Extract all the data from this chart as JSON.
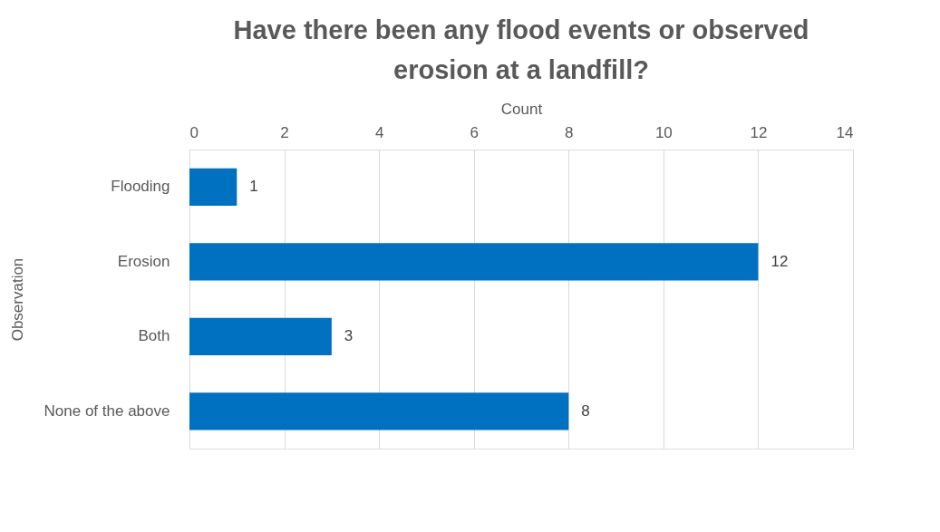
{
  "chart_data": {
    "type": "bar",
    "orientation": "horizontal",
    "title": "Have there been any flood events or observed erosion at a landfill?",
    "xlabel": "Count",
    "ylabel": "Observation",
    "categories": [
      "Flooding",
      "Erosion",
      "Both",
      "None of the above"
    ],
    "values": [
      1,
      12,
      3,
      8
    ],
    "color": "#0070c0",
    "xlim": [
      0,
      14
    ],
    "xticks": [
      0,
      2,
      4,
      6,
      8,
      10,
      12,
      14
    ],
    "grid": "x",
    "data_labels": true
  }
}
